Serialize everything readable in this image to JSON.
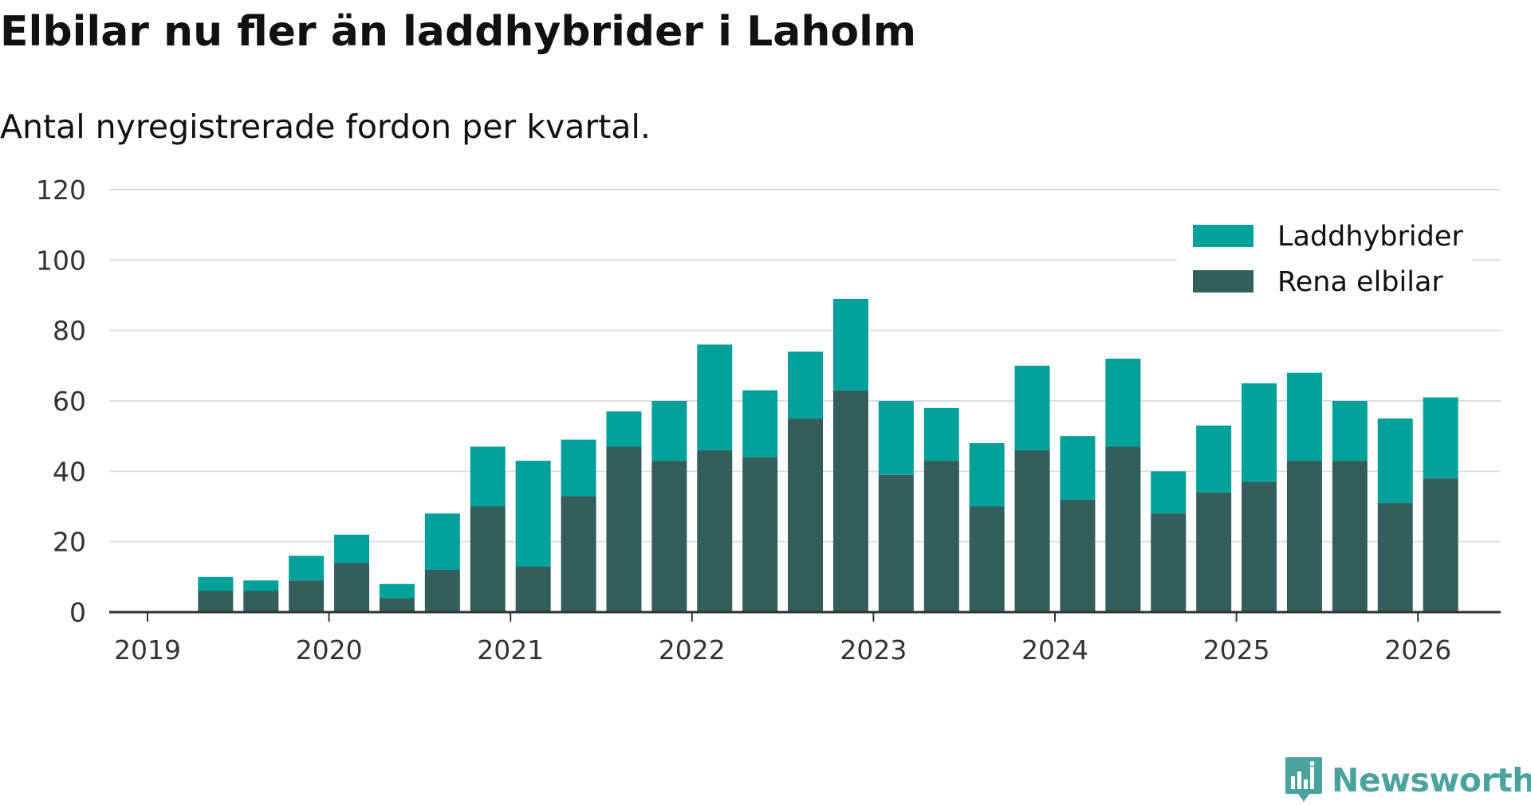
{
  "chart_data": {
    "type": "bar",
    "stacked": true,
    "title": "Elbilar nu fler än laddhybrider i Laholm",
    "subtitle": "Antal nyregistrerade fordon per kvartal.",
    "xlabel": "",
    "ylabel": "",
    "ylim": [
      0,
      120
    ],
    "yticks": [
      "0",
      "20",
      "40",
      "60",
      "80",
      "100",
      "120"
    ],
    "xticks": [
      "2019",
      "2020",
      "2021",
      "2022",
      "2023",
      "2024",
      "2025",
      "2026"
    ],
    "categories": [
      "2019 Q2",
      "2019 Q3",
      "2019 Q4",
      "2020 Q1",
      "2020 Q2",
      "2020 Q3",
      "2020 Q4",
      "2021 Q1",
      "2021 Q2",
      "2021 Q3",
      "2021 Q4",
      "2022 Q1",
      "2022 Q2",
      "2022 Q3",
      "2022 Q4",
      "2023 Q1",
      "2023 Q2",
      "2023 Q3",
      "2023 Q4",
      "2024 Q1",
      "2024 Q2",
      "2024 Q3",
      "2024 Q4",
      "2025 Q1",
      "2025 Q2",
      "2025 Q3",
      "2025 Q4",
      "2026 Q1"
    ],
    "series": [
      {
        "name": "Rena elbilar",
        "color": "#335e5b",
        "values": [
          6,
          6,
          9,
          14,
          4,
          12,
          30,
          13,
          33,
          47,
          43,
          46,
          44,
          55,
          63,
          39,
          43,
          30,
          46,
          32,
          47,
          28,
          34,
          37,
          43,
          43,
          31,
          38
        ]
      },
      {
        "name": "Laddhybrider",
        "color": "#00a19a",
        "values": [
          4,
          3,
          7,
          8,
          4,
          16,
          17,
          30,
          16,
          10,
          17,
          30,
          19,
          19,
          26,
          21,
          15,
          18,
          24,
          18,
          25,
          12,
          19,
          28,
          25,
          17,
          24,
          23
        ]
      }
    ],
    "legend": [
      {
        "name": "Laddhybrider",
        "color": "#00a19a"
      },
      {
        "name": "Rena elbilar",
        "color": "#335e5b"
      }
    ],
    "legend_position": "top-right",
    "grid": true
  },
  "brand": {
    "name": "Newsworthy",
    "color": "#4aa39d"
  }
}
